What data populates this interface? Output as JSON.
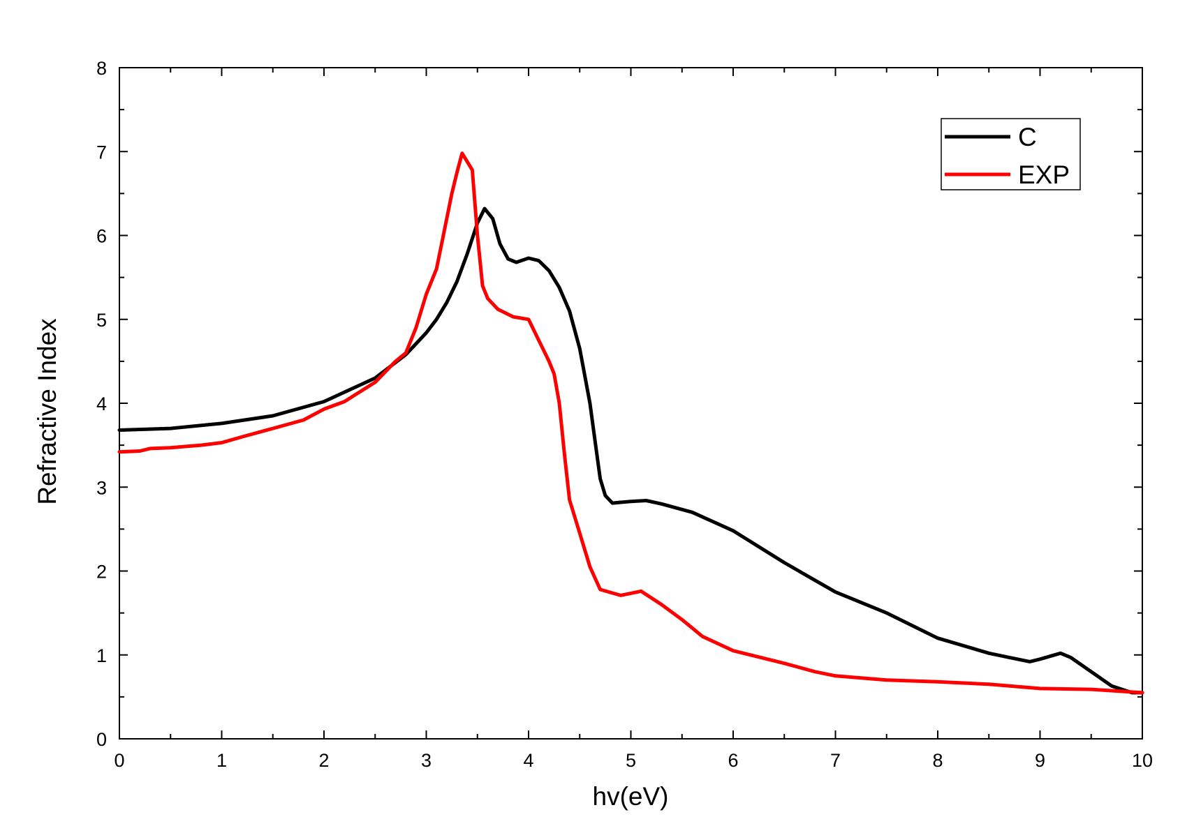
{
  "chart_data": {
    "type": "line",
    "title": "",
    "xlabel": "hv(eV)",
    "ylabel": "Refractive Index",
    "xlim": [
      0,
      10
    ],
    "ylim": [
      0,
      8
    ],
    "x_ticks": [
      "0",
      "1",
      "2",
      "3",
      "4",
      "5",
      "6",
      "7",
      "8",
      "9",
      "10"
    ],
    "y_ticks": [
      "0",
      "1",
      "2",
      "3",
      "4",
      "5",
      "6",
      "7",
      "8"
    ],
    "grid": false,
    "legend_position": "top-right",
    "series": [
      {
        "name": "C",
        "color": "#000000",
        "points": [
          [
            0.0,
            3.68
          ],
          [
            0.5,
            3.7
          ],
          [
            1.0,
            3.76
          ],
          [
            1.5,
            3.85
          ],
          [
            2.0,
            4.02
          ],
          [
            2.5,
            4.3
          ],
          [
            2.8,
            4.58
          ],
          [
            3.0,
            4.84
          ],
          [
            3.1,
            5.0
          ],
          [
            3.2,
            5.2
          ],
          [
            3.3,
            5.45
          ],
          [
            3.4,
            5.78
          ],
          [
            3.5,
            6.15
          ],
          [
            3.57,
            6.32
          ],
          [
            3.65,
            6.2
          ],
          [
            3.72,
            5.9
          ],
          [
            3.8,
            5.72
          ],
          [
            3.88,
            5.68
          ],
          [
            4.0,
            5.73
          ],
          [
            4.1,
            5.7
          ],
          [
            4.2,
            5.58
          ],
          [
            4.3,
            5.38
          ],
          [
            4.4,
            5.1
          ],
          [
            4.5,
            4.65
          ],
          [
            4.6,
            4.0
          ],
          [
            4.65,
            3.55
          ],
          [
            4.7,
            3.1
          ],
          [
            4.75,
            2.9
          ],
          [
            4.82,
            2.81
          ],
          [
            5.0,
            2.83
          ],
          [
            5.15,
            2.84
          ],
          [
            5.3,
            2.8
          ],
          [
            5.6,
            2.7
          ],
          [
            6.0,
            2.48
          ],
          [
            6.5,
            2.1
          ],
          [
            7.0,
            1.75
          ],
          [
            7.5,
            1.5
          ],
          [
            8.0,
            1.2
          ],
          [
            8.5,
            1.02
          ],
          [
            8.7,
            0.97
          ],
          [
            8.9,
            0.92
          ],
          [
            9.0,
            0.95
          ],
          [
            9.2,
            1.02
          ],
          [
            9.3,
            0.97
          ],
          [
            9.5,
            0.8
          ],
          [
            9.7,
            0.63
          ],
          [
            9.9,
            0.55
          ],
          [
            10.0,
            0.55
          ]
        ]
      },
      {
        "name": "EXP",
        "color": "#ff0000",
        "points": [
          [
            0.0,
            3.42
          ],
          [
            0.2,
            3.43
          ],
          [
            0.3,
            3.46
          ],
          [
            0.5,
            3.47
          ],
          [
            0.8,
            3.5
          ],
          [
            1.0,
            3.53
          ],
          [
            1.2,
            3.6
          ],
          [
            1.5,
            3.7
          ],
          [
            1.8,
            3.8
          ],
          [
            2.0,
            3.93
          ],
          [
            2.2,
            4.02
          ],
          [
            2.5,
            4.25
          ],
          [
            2.7,
            4.5
          ],
          [
            2.8,
            4.6
          ],
          [
            2.9,
            4.9
          ],
          [
            3.0,
            5.3
          ],
          [
            3.1,
            5.6
          ],
          [
            3.15,
            5.9
          ],
          [
            3.2,
            6.2
          ],
          [
            3.25,
            6.5
          ],
          [
            3.3,
            6.75
          ],
          [
            3.35,
            6.98
          ],
          [
            3.45,
            6.78
          ],
          [
            3.5,
            6.0
          ],
          [
            3.55,
            5.4
          ],
          [
            3.6,
            5.25
          ],
          [
            3.7,
            5.12
          ],
          [
            3.85,
            5.03
          ],
          [
            4.0,
            5.0
          ],
          [
            4.1,
            4.75
          ],
          [
            4.2,
            4.5
          ],
          [
            4.25,
            4.35
          ],
          [
            4.3,
            4.0
          ],
          [
            4.35,
            3.4
          ],
          [
            4.4,
            2.85
          ],
          [
            4.5,
            2.45
          ],
          [
            4.6,
            2.05
          ],
          [
            4.7,
            1.78
          ],
          [
            4.9,
            1.71
          ],
          [
            5.1,
            1.76
          ],
          [
            5.3,
            1.6
          ],
          [
            5.5,
            1.42
          ],
          [
            5.7,
            1.22
          ],
          [
            6.0,
            1.05
          ],
          [
            6.5,
            0.9
          ],
          [
            6.8,
            0.8
          ],
          [
            7.0,
            0.75
          ],
          [
            7.5,
            0.7
          ],
          [
            8.0,
            0.68
          ],
          [
            8.5,
            0.65
          ],
          [
            9.0,
            0.6
          ],
          [
            9.5,
            0.59
          ],
          [
            10.0,
            0.55
          ]
        ]
      }
    ]
  }
}
